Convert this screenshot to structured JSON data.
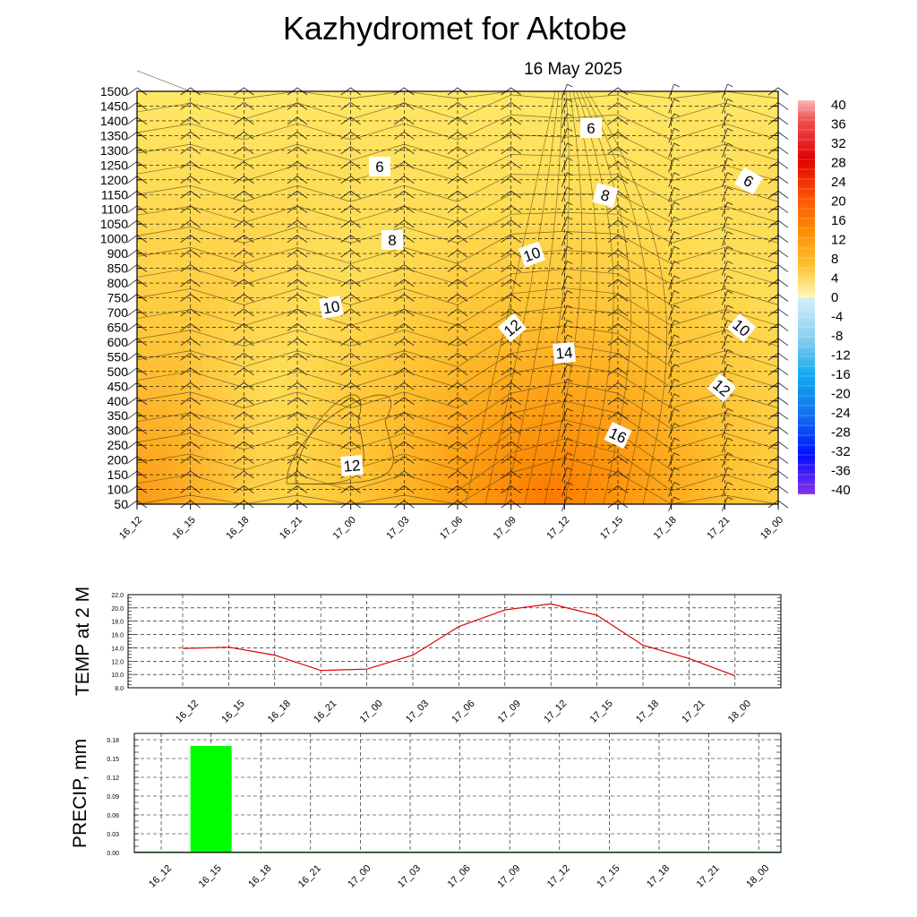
{
  "title": "Kazhydromet  for Aktobe",
  "date": "16 May 2025",
  "x_ticks": [
    "16_12",
    "16_15",
    "16_18",
    "16_21",
    "17_00",
    "17_03",
    "17_06",
    "17_09",
    "17_12",
    "17_15",
    "17_18",
    "17_21",
    "18_00"
  ],
  "chart_data": [
    {
      "type": "heatmap",
      "title": "",
      "xlabel": "",
      "ylabel": "",
      "y_ticks": [
        "1500",
        "1450",
        "1400",
        "1350",
        "1300",
        "1250",
        "1200",
        "1150",
        "1100",
        "1050",
        "1000",
        "900",
        "850",
        "800",
        "750",
        "700",
        "650",
        "600",
        "550",
        "500",
        "450",
        "400",
        "350",
        "300",
        "250",
        "200",
        "150",
        "100",
        "50"
      ],
      "colorbar_ticks": [
        "40",
        "36",
        "32",
        "28",
        "24",
        "20",
        "16",
        "12",
        "8",
        "4",
        "0",
        "-4",
        "-8",
        "-12",
        "-16",
        "-20",
        "-24",
        "-28",
        "-32",
        "-36",
        "-40"
      ],
      "contour_labels": [
        "6",
        "6",
        "6",
        "8",
        "8",
        "10",
        "10",
        "10",
        "12",
        "12",
        "12",
        "14",
        "16"
      ],
      "grid": true
    },
    {
      "type": "line",
      "title": "",
      "xlabel": "",
      "ylabel": "TEMP at 2 M",
      "ylim": [
        8.0,
        22.0
      ],
      "y_ticks": [
        "22.0",
        "20.0",
        "18.0",
        "16.0",
        "14.0",
        "12.0",
        "10.0",
        "8.0"
      ],
      "x": [
        "16_12",
        "16_15",
        "16_18",
        "16_21",
        "17_00",
        "17_03",
        "17_06",
        "17_09",
        "17_12",
        "17_15",
        "17_18",
        "17_21",
        "18_00"
      ],
      "values": [
        13.9,
        14.1,
        12.9,
        10.6,
        10.8,
        12.9,
        17.2,
        19.7,
        20.6,
        18.9,
        14.4,
        12.4,
        9.8
      ],
      "line_color": "#e00000",
      "grid": true
    },
    {
      "type": "bar",
      "title": "",
      "xlabel": "",
      "ylabel": "PRECIP, mm",
      "ylim": [
        0.0,
        0.19
      ],
      "y_ticks": [
        "0.18",
        "0.15",
        "0.12",
        "0.09",
        "0.06",
        "0.03",
        "0.00"
      ],
      "categories": [
        "16_12",
        "16_15",
        "16_18",
        "16_21",
        "17_00",
        "17_03",
        "17_06",
        "17_09",
        "17_12",
        "17_15",
        "17_18",
        "17_21",
        "18_00"
      ],
      "values": [
        0,
        0.17,
        0,
        0,
        0,
        0,
        0,
        0,
        0,
        0,
        0,
        0,
        0
      ],
      "bar_color": "#00ff00",
      "grid": true
    }
  ]
}
